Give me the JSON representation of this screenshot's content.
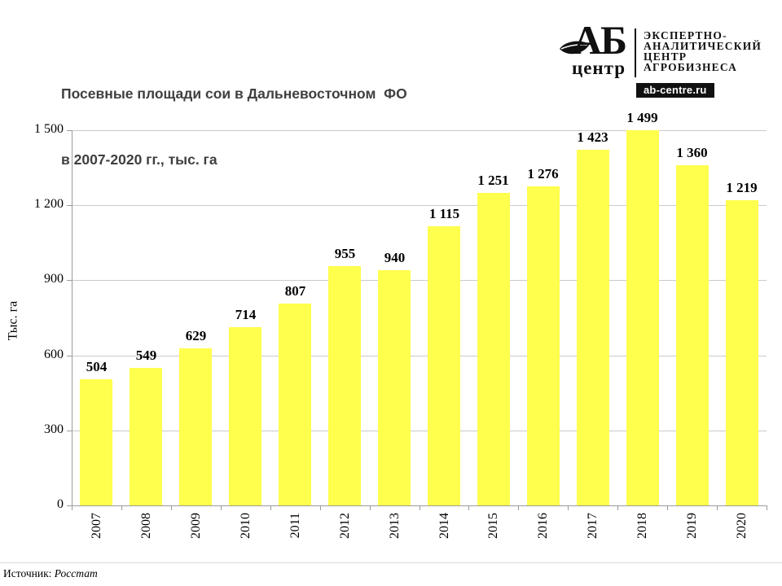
{
  "header": {
    "title_line1": "Посевные площади сои в Дальневосточном  ФО",
    "title_line2": "в 2007-2020 гг., тыс. га"
  },
  "logo": {
    "mark_top": "АБ",
    "mark_bottom": "центр",
    "lines": [
      "ЭКСПЕРТНО-",
      "АНАЛИТИЧЕСКИЙ",
      "ЦЕНТР",
      "АГРОБИЗНЕСА"
    ],
    "site": "ab-centre.ru"
  },
  "chart_data": {
    "type": "bar",
    "title": "Посевные площади сои в Дальневосточном ФО в 2007-2020 гг., тыс. га",
    "categories": [
      "2007",
      "2008",
      "2009",
      "2010",
      "2011",
      "2012",
      "2013",
      "2014",
      "2015",
      "2016",
      "2017",
      "2018",
      "2019",
      "2020"
    ],
    "values": [
      504,
      549,
      629,
      714,
      807,
      955,
      940,
      1115,
      1251,
      1276,
      1423,
      1499,
      1360,
      1219
    ],
    "value_labels": [
      "504",
      "549",
      "629",
      "714",
      "807",
      "955",
      "940",
      "1 115",
      "1 251",
      "1 276",
      "1 423",
      "1 499",
      "1 360",
      "1 219"
    ],
    "ylabel": "Тыс. га",
    "xlabel": "",
    "ylim": [
      0,
      1500
    ],
    "yticks": [
      0,
      300,
      600,
      900,
      1200,
      1500
    ],
    "ytick_labels": [
      "0",
      "300",
      "600",
      "900",
      "1 200",
      "1 500"
    ],
    "grid": true,
    "legend": false,
    "bar_color": "#ffff4d"
  },
  "footer": {
    "source_label": "Источник:",
    "source_value": "Росстат"
  }
}
